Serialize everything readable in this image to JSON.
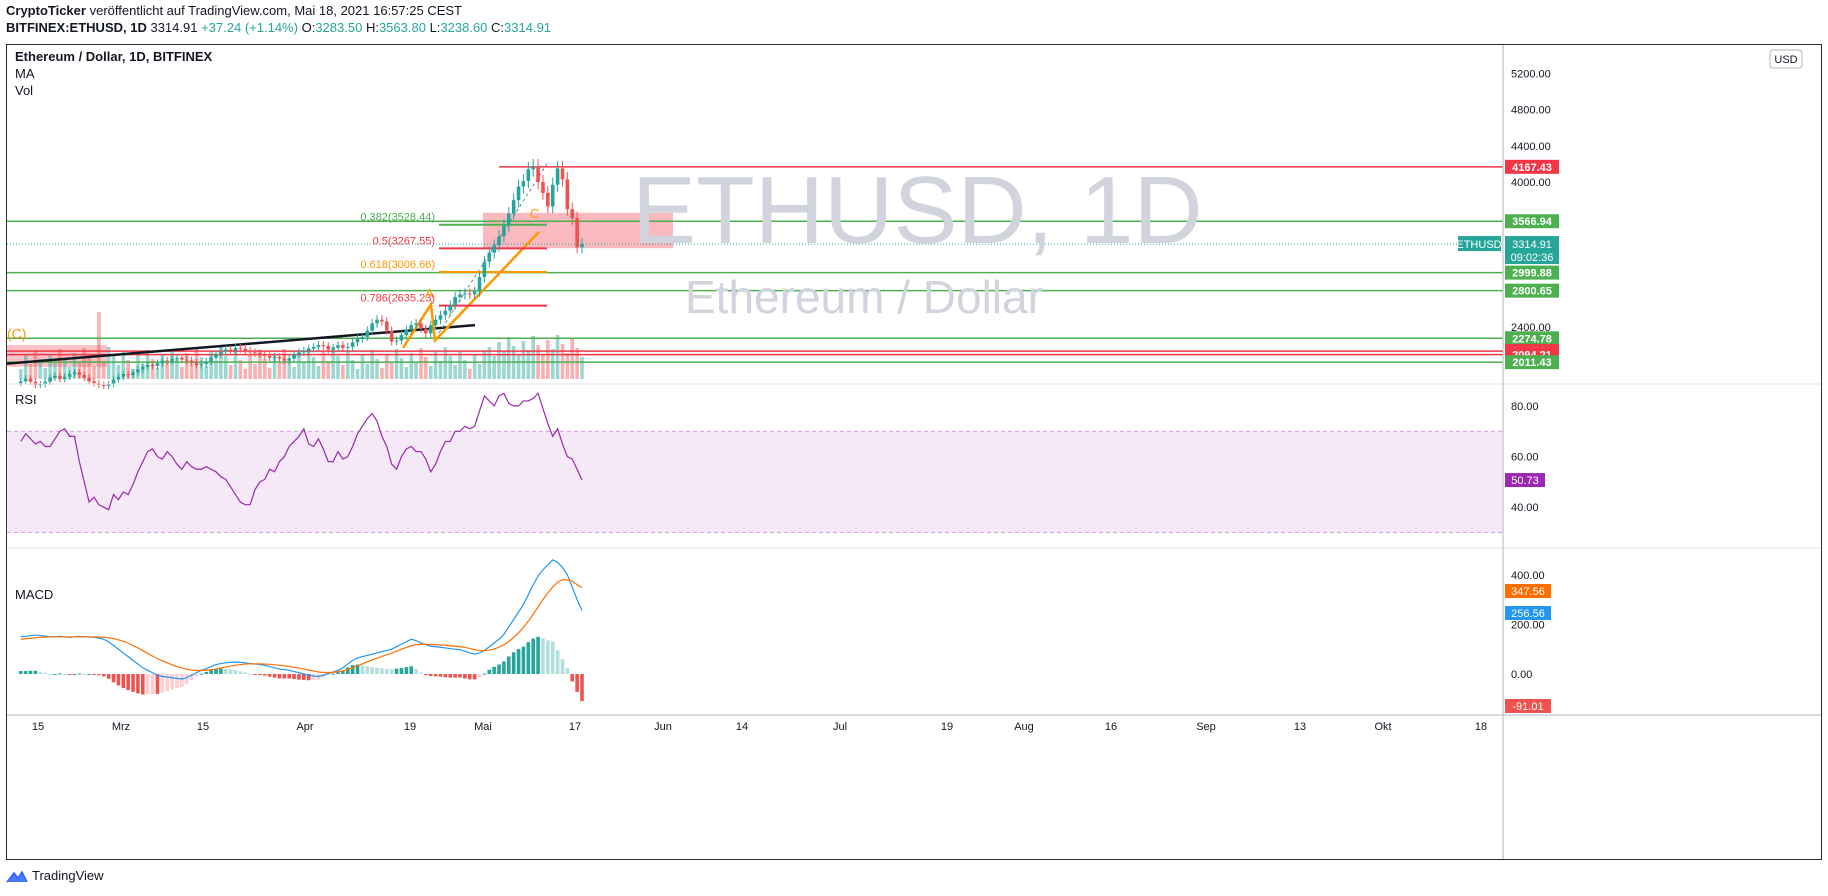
{
  "header": {
    "line1_publisher": "CryptoTicker",
    "line1_text": "veröffentlicht auf TradingView.com, Mai 18, 2021 16:57:25 CEST",
    "symbol": "BITFINEX:ETHUSD, 1D",
    "last": "3314.91",
    "change": "+37.24 (+1.14%)",
    "ohlc": {
      "o_label": "O:",
      "o": "3283.50",
      "h_label": "H:",
      "h": "3563.80",
      "l_label": "L:",
      "l": "3238.60",
      "c_label": "C:",
      "c": "3314.91"
    }
  },
  "panel": {
    "title": "Ethereum / Dollar, 1D, BITFINEX",
    "ind1": "MA",
    "ind2": "Vol",
    "currency": "USD",
    "watermark_big": "ETHUSD, 1D",
    "watermark_small": "Ethereum / Dollar",
    "rsi_label": "RSI",
    "macd_label": "MACD"
  },
  "footer": {
    "brand": "TradingView"
  },
  "colors": {
    "up": "#26a69a",
    "down": "#ef5350",
    "green_line": "#4caf50",
    "red_line": "#f23645",
    "orange": "#ff9800",
    "rsi": "#9c27b0",
    "macd": "#2196f3",
    "signal": "#ff6d00"
  },
  "chart_data": [
    {
      "type": "candlestick",
      "pane": "price",
      "price_axis_ticks": [
        "5200.00",
        "4800.00",
        "4400.00",
        "4000.00",
        "2400.00"
      ],
      "ylim": [
        1950,
        5420
      ],
      "date_axis_ticks": [
        "15",
        "Mrz",
        "15",
        "Apr",
        "19",
        "Mai",
        "17",
        "Jun",
        "14",
        "Jul",
        "19",
        "Aug",
        "16",
        "Sep",
        "13",
        "Okt",
        "18"
      ],
      "closes": [
        1800,
        1830,
        1795,
        1760,
        1770,
        1795,
        1840,
        1860,
        1825,
        1850,
        1880,
        1900,
        1870,
        1840,
        1800,
        1780,
        1760,
        1750,
        1770,
        1820,
        1850,
        1880,
        1870,
        1900,
        1930,
        1960,
        1980,
        1970,
        2000,
        2030,
        2020,
        2050,
        2060,
        2040,
        2030,
        2010,
        1980,
        1990,
        2020,
        2060,
        2100,
        2130,
        2150,
        2140,
        2170,
        2160,
        2140,
        2120,
        2110,
        2100,
        2080,
        2060,
        2070,
        2050,
        2030,
        2050,
        2100,
        2120,
        2140,
        2160,
        2180,
        2200,
        2190,
        2150,
        2170,
        2200,
        2170,
        2180,
        2230,
        2270,
        2290,
        2360,
        2440,
        2480,
        2460,
        2360,
        2240,
        2250,
        2310,
        2370,
        2420,
        2440,
        2380,
        2330,
        2420,
        2480,
        2530,
        2580,
        2640,
        2730,
        2760,
        2770,
        2760,
        2790,
        2950,
        3120,
        3220,
        3300,
        3400,
        3520,
        3650,
        3800,
        3950,
        4010,
        4140,
        4170,
        4000,
        3880,
        3730,
        3970,
        4150,
        4030,
        3700,
        3600,
        3280,
        3314.91
      ],
      "current_price": "3314.91",
      "countdown": "09:02:36",
      "symbol_tag": "ETHUSD",
      "horizontal_levels": [
        {
          "value": "4167.43",
          "color": "red"
        },
        {
          "value": "3566.94",
          "color": "green"
        },
        {
          "value": "2999.88",
          "color": "green"
        },
        {
          "value": "2800.65",
          "color": "green"
        },
        {
          "value": "2274.78",
          "color": "green"
        },
        {
          "value": "2133.96",
          "color": "red"
        },
        {
          "value": "2094.21",
          "color": "red"
        },
        {
          "value": "2011.43",
          "color": "green"
        }
      ],
      "fib_levels": [
        {
          "label": "0.382(3528.44)",
          "value": 3528.44,
          "color": "#4caf50"
        },
        {
          "label": "0.5(3267.55)",
          "value": 3267.55,
          "color": "#f23645"
        },
        {
          "label": "0.618(3006.66)",
          "value": 3006.66,
          "color": "#ff9800"
        },
        {
          "label": "0.786(2635.23)",
          "value": 2635.23,
          "color": "#f23645"
        }
      ],
      "wave_labels": [
        "A",
        "C",
        "(C)"
      ]
    },
    {
      "type": "line",
      "pane": "rsi",
      "name": "RSI",
      "axis_ticks": [
        "80.00",
        "60.00",
        "40.00"
      ],
      "ylim": [
        24,
        90
      ],
      "band": [
        30,
        70
      ],
      "values": [
        66,
        69,
        67,
        65,
        66,
        64,
        64,
        67,
        70,
        71,
        68,
        68,
        58,
        50,
        42,
        44,
        41,
        40,
        39,
        45,
        43,
        46,
        45,
        49,
        54,
        58,
        62,
        63,
        60,
        59,
        62,
        60,
        57,
        55,
        58,
        56,
        55,
        55,
        56,
        55,
        54,
        52,
        51,
        48,
        45,
        42,
        41,
        41,
        47,
        50,
        51,
        55,
        54,
        58,
        60,
        64,
        66,
        68,
        71,
        65,
        64,
        67,
        63,
        58,
        58,
        62,
        59,
        60,
        64,
        69,
        72,
        75,
        77,
        74,
        68,
        64,
        57,
        55,
        60,
        63,
        64,
        62,
        62,
        59,
        54,
        57,
        62,
        66,
        66,
        70,
        70,
        72,
        71,
        72,
        78,
        84,
        82,
        80,
        84,
        85,
        81,
        80,
        80,
        82,
        82,
        83,
        85,
        79,
        73,
        68,
        71,
        65,
        60,
        59,
        55,
        50.73
      ],
      "current": "50.73"
    },
    {
      "type": "line",
      "pane": "macd",
      "axis_ticks": [
        "400.00",
        "200.00",
        "0.00"
      ],
      "ylim": [
        -160,
        520
      ],
      "series": [
        {
          "name": "MACD",
          "values": [
            150,
            152,
            155,
            157,
            155,
            153,
            150,
            150,
            152,
            150,
            148,
            150,
            152,
            150,
            150,
            148,
            145,
            140,
            130,
            115,
            100,
            85,
            70,
            55,
            40,
            25,
            15,
            5,
            -5,
            -10,
            -12,
            -15,
            -18,
            -20,
            -15,
            -5,
            5,
            15,
            22,
            30,
            38,
            42,
            45,
            47,
            48,
            47,
            45,
            42,
            40,
            38,
            35,
            30,
            25,
            20,
            18,
            15,
            10,
            5,
            0,
            -5,
            -8,
            -10,
            -5,
            2,
            8,
            15,
            25,
            40,
            55,
            65,
            70,
            75,
            80,
            85,
            90,
            95,
            100,
            110,
            120,
            130,
            140,
            135,
            125,
            118,
            112,
            110,
            108,
            105,
            102,
            100,
            98,
            92,
            85,
            80,
            85,
            95,
            110,
            125,
            140,
            160,
            190,
            220,
            250,
            280,
            320,
            360,
            395,
            420,
            440,
            460,
            450,
            430,
            400,
            350,
            300,
            256.56
          ],
          "current": "256.56"
        },
        {
          "name": "Signal",
          "values": [
            140,
            142,
            144,
            146,
            148,
            149,
            150,
            150,
            150,
            150,
            150,
            150,
            150,
            150,
            150,
            150,
            149,
            148,
            146,
            143,
            138,
            132,
            124,
            115,
            105,
            94,
            83,
            72,
            62,
            53,
            45,
            37,
            30,
            24,
            19,
            16,
            14,
            14,
            15,
            17,
            20,
            24,
            28,
            32,
            35,
            38,
            40,
            41,
            41,
            41,
            40,
            39,
            37,
            35,
            33,
            30,
            27,
            24,
            20,
            16,
            12,
            8,
            6,
            6,
            7,
            9,
            13,
            18,
            25,
            33,
            41,
            49,
            57,
            64,
            71,
            78,
            84,
            92,
            100,
            107,
            114,
            118,
            120,
            120,
            119,
            118,
            117,
            116,
            114,
            112,
            110,
            107,
            103,
            98,
            95,
            94,
            96,
            101,
            108,
            118,
            131,
            147,
            166,
            188,
            213,
            241,
            270,
            300,
            327,
            351,
            370,
            380,
            380,
            375,
            360,
            347.56
          ],
          "current": "347.56"
        }
      ],
      "histogram_current": "-91.01"
    }
  ]
}
